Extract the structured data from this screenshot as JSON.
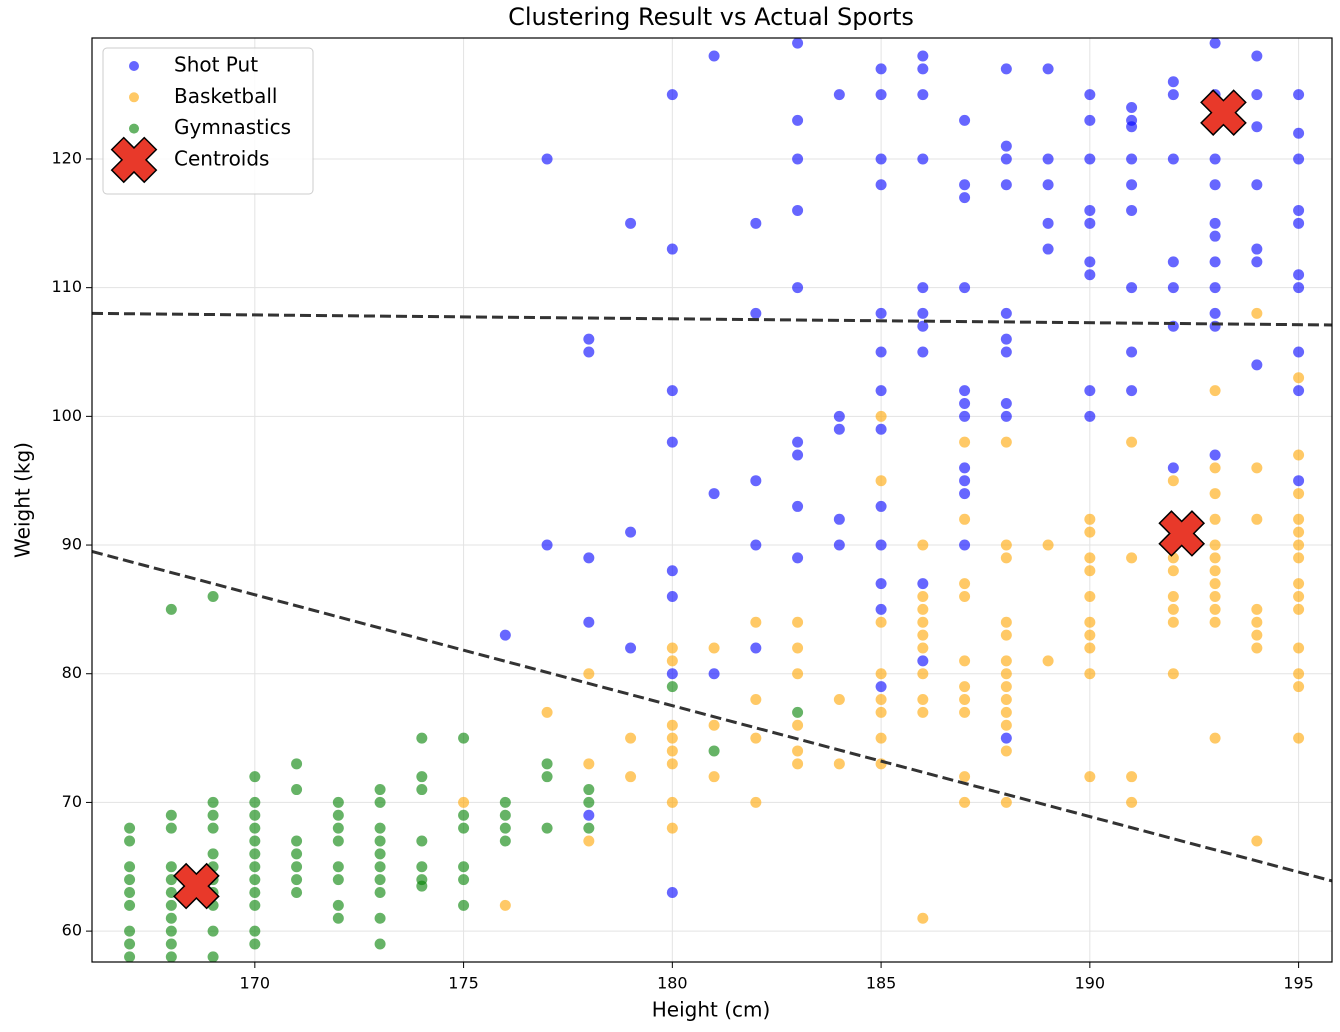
{
  "chart_data": {
    "type": "scatter",
    "title": "Clustering Result vs Actual Sports",
    "x_label": "Height (cm)",
    "y_label": "Weight (kg)",
    "xlim": [
      166.1,
      195.8
    ],
    "ylim": [
      57.6,
      129.4
    ],
    "xticks": [
      170,
      175,
      180,
      185,
      190,
      195
    ],
    "yticks": [
      60,
      70,
      80,
      90,
      100,
      110,
      120
    ],
    "grid": true,
    "legend": "upper left",
    "series": [
      {
        "name": "Shot Put",
        "color": "#0000ff",
        "x": [
          183,
          181,
          186,
          194,
          193,
          185,
          186,
          188,
          189,
          180,
          184,
          185,
          186,
          190,
          192,
          192,
          193,
          194,
          195,
          191,
          183,
          187,
          190,
          191,
          191,
          194,
          195,
          188,
          177,
          183,
          185,
          186,
          188,
          189,
          190,
          191,
          192,
          193,
          195,
          185,
          187,
          188,
          189,
          191,
          193,
          194,
          187,
          183,
          190,
          191,
          195,
          179,
          182,
          189,
          190,
          193,
          195,
          193,
          180,
          189,
          194,
          190,
          192,
          193,
          194,
          190,
          195,
          183,
          186,
          187,
          191,
          192,
          193,
          195,
          182,
          185,
          186,
          188,
          193,
          186,
          192,
          193,
          178,
          188,
          178,
          185,
          186,
          188,
          191,
          195,
          194,
          180,
          185,
          187,
          190,
          191,
          195,
          187,
          188,
          184,
          187,
          188,
          190,
          184,
          185,
          180,
          183,
          183,
          193,
          187,
          192,
          182,
          187,
          195,
          181,
          187,
          183,
          185,
          184,
          179,
          177,
          182,
          184,
          185,
          187,
          178,
          183,
          180,
          185,
          186,
          180,
          185,
          178,
          176,
          179,
          182,
          186,
          180,
          181,
          185,
          188,
          178,
          180
        ],
        "values": [
          129,
          128,
          128,
          128,
          129,
          127,
          127,
          127,
          127,
          125,
          125,
          125,
          125,
          125,
          126,
          125,
          125,
          125,
          125,
          124,
          123,
          123,
          123,
          123,
          122.5,
          122.5,
          122,
          121,
          120,
          120,
          120,
          120,
          120,
          120,
          120,
          120,
          120,
          120,
          120,
          118,
          118,
          118,
          118,
          118,
          118,
          118,
          117,
          116,
          116,
          116,
          116,
          115,
          115,
          115,
          115,
          115,
          115,
          114,
          113,
          113,
          113,
          112,
          112,
          112,
          112,
          111,
          111,
          110,
          110,
          110,
          110,
          110,
          110,
          110,
          108,
          108,
          108,
          108,
          108,
          107,
          107,
          107,
          106,
          106,
          105,
          105,
          105,
          105,
          105,
          105,
          104,
          102,
          102,
          102,
          102,
          102,
          102,
          101,
          101,
          100,
          100,
          100,
          100,
          99,
          99,
          98,
          98,
          97,
          97,
          96,
          96,
          95,
          95,
          95,
          94,
          94,
          93,
          93,
          92,
          91,
          90,
          90,
          90,
          90,
          90,
          89,
          89,
          88,
          87,
          87,
          86,
          85,
          84,
          83,
          82,
          82,
          81,
          80,
          80,
          79,
          75,
          69,
          63
        ]
      },
      {
        "name": "Basketball",
        "color": "#ffa500",
        "x": [
          194,
          193,
          195,
          185,
          187,
          188,
          191,
          193,
          194,
          195,
          185,
          192,
          193,
          195,
          187,
          190,
          193,
          194,
          195,
          186,
          188,
          189,
          190,
          193,
          195,
          195,
          188,
          190,
          191,
          192,
          193,
          195,
          192,
          193,
          190,
          187,
          193,
          195,
          186,
          187,
          190,
          192,
          193,
          195,
          186,
          192,
          193,
          194,
          195,
          183,
          185,
          186,
          188,
          190,
          192,
          193,
          194,
          180,
          181,
          183,
          182,
          186,
          188,
          190,
          194,
          186,
          190,
          194,
          195,
          180,
          187,
          188,
          189,
          178,
          183,
          185,
          186,
          188,
          190,
          192,
          195,
          187,
          188,
          195,
          182,
          184,
          185,
          186,
          187,
          188,
          177,
          185,
          186,
          187,
          188,
          180,
          181,
          183,
          188,
          179,
          180,
          182,
          185,
          193,
          195,
          180,
          183,
          188,
          184,
          178,
          180,
          183,
          185,
          179,
          181,
          187,
          190,
          191,
          175,
          180,
          182,
          187,
          188,
          191,
          178,
          180,
          194,
          176,
          186
        ],
        "values": [
          108,
          102,
          103,
          100,
          98,
          98,
          98,
          96,
          96,
          97,
          95,
          95,
          94,
          94,
          92,
          92,
          92,
          92,
          92,
          90,
          90,
          90,
          91,
          90,
          91,
          90,
          89,
          89,
          89,
          89,
          89,
          89,
          88,
          88,
          88,
          87,
          87,
          87,
          86,
          86,
          86,
          86,
          86,
          86,
          85,
          85,
          85,
          85,
          85,
          84,
          84,
          84,
          84,
          84,
          84,
          84,
          84,
          82,
          82,
          82,
          84,
          83,
          83,
          83,
          83,
          82,
          82,
          82,
          82,
          81,
          81,
          81,
          81,
          80,
          80,
          80,
          80,
          80,
          80,
          80,
          80,
          79,
          79,
          79,
          78,
          78,
          78,
          78,
          78,
          78,
          77,
          77,
          77,
          77,
          77,
          76,
          76,
          76,
          76,
          75,
          75,
          75,
          75,
          75,
          75,
          74,
          74,
          74,
          73,
          73,
          73,
          73,
          73,
          72,
          72,
          72,
          72,
          72,
          70,
          70,
          70,
          70,
          70,
          70,
          67,
          68,
          67,
          62,
          61
        ]
      },
      {
        "name": "Gymnastics",
        "color": "#008000",
        "x": [
          168,
          169,
          180,
          183,
          181,
          174,
          175,
          171,
          177,
          170,
          174,
          177,
          171,
          173,
          174,
          178,
          167,
          168,
          169,
          169,
          170,
          170,
          172,
          172,
          173,
          175,
          176,
          176,
          178,
          167,
          168,
          169,
          170,
          171,
          172,
          173,
          175,
          176,
          177,
          178,
          167,
          168,
          169,
          170,
          170,
          170,
          171,
          172,
          173,
          174,
          176,
          167,
          167,
          168,
          168,
          169,
          169,
          170,
          170,
          171,
          171,
          171,
          172,
          172,
          173,
          173,
          173,
          173,
          174,
          174,
          174,
          175,
          175,
          167,
          168,
          168,
          169,
          169,
          170,
          172,
          172,
          173,
          175,
          167,
          168,
          169,
          170,
          170,
          173,
          167,
          168,
          167,
          168,
          169
        ],
        "values": [
          85,
          86,
          79,
          77,
          74,
          75,
          75,
          73,
          73,
          72,
          72,
          72,
          71,
          71,
          71,
          71,
          68,
          69,
          70,
          69,
          70,
          69,
          70,
          69,
          70,
          69,
          70,
          69,
          70,
          67,
          68,
          68,
          68,
          67,
          68,
          68,
          68,
          68,
          68,
          68,
          65,
          65,
          66,
          67,
          66,
          65,
          66,
          67,
          67,
          67,
          67,
          64,
          63,
          64,
          63,
          65,
          64,
          64,
          63,
          65,
          64,
          63,
          65,
          64,
          66,
          65,
          64,
          63,
          65,
          64,
          63.5,
          65,
          64,
          62,
          62,
          61,
          63,
          62,
          62,
          62,
          61,
          61,
          62,
          60,
          60,
          60,
          60,
          59,
          59,
          59,
          59,
          58,
          58,
          58
        ]
      },
      {
        "name": "Centroids",
        "color": "#e8392a",
        "marker": "X",
        "x": [
          168.6,
          192.2,
          193.2
        ],
        "values": [
          63.5,
          90.9,
          123.6
        ]
      }
    ],
    "boundaries": [
      {
        "x": [
          166.1,
          195.8
        ],
        "y": [
          108,
          107.1
        ],
        "color": "#333333"
      },
      {
        "x": [
          166.1,
          195.8
        ],
        "y": [
          89.5,
          63.9
        ],
        "color": "#333333"
      }
    ]
  }
}
